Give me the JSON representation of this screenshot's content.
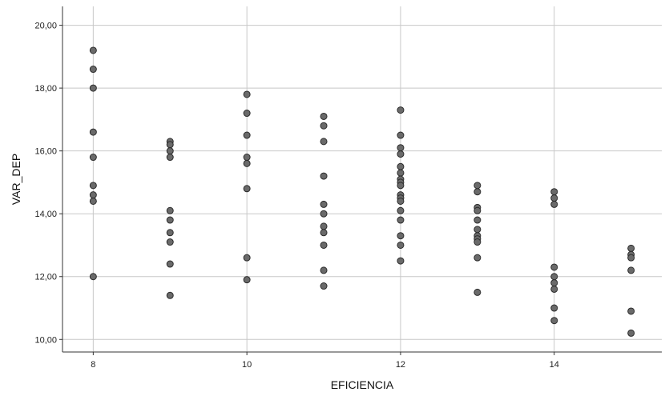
{
  "chart_data": {
    "type": "scatter",
    "title": "",
    "xlabel": "EFICIENCIA",
    "ylabel": "VAR_DEP",
    "xlim": [
      7.6,
      15.4
    ],
    "ylim": [
      9.6,
      20.6
    ],
    "x_ticks": [
      8,
      10,
      12,
      14
    ],
    "x_tick_labels": [
      "8",
      "10",
      "12",
      "14"
    ],
    "y_ticks": [
      10,
      12,
      14,
      16,
      18,
      20
    ],
    "y_tick_labels": [
      "10,00",
      "12,00",
      "14,00",
      "16,00",
      "18,00",
      "20,00"
    ],
    "grid": true,
    "colors": {
      "point_fill": "#6a6a6a",
      "point_stroke": "#2b2b2b",
      "grid": "#c8c8c8",
      "axis": "#333333"
    },
    "points": [
      {
        "x": 8,
        "y": 19.2
      },
      {
        "x": 8,
        "y": 18.6
      },
      {
        "x": 8,
        "y": 18.0
      },
      {
        "x": 8,
        "y": 16.6
      },
      {
        "x": 8,
        "y": 15.8
      },
      {
        "x": 8,
        "y": 14.9
      },
      {
        "x": 8,
        "y": 14.6
      },
      {
        "x": 8,
        "y": 14.4
      },
      {
        "x": 8,
        "y": 12.0
      },
      {
        "x": 9,
        "y": 16.3
      },
      {
        "x": 9,
        "y": 16.2
      },
      {
        "x": 9,
        "y": 16.0
      },
      {
        "x": 9,
        "y": 15.8
      },
      {
        "x": 9,
        "y": 14.1
      },
      {
        "x": 9,
        "y": 13.8
      },
      {
        "x": 9,
        "y": 13.4
      },
      {
        "x": 9,
        "y": 13.1
      },
      {
        "x": 9,
        "y": 12.4
      },
      {
        "x": 9,
        "y": 11.4
      },
      {
        "x": 10,
        "y": 17.8
      },
      {
        "x": 10,
        "y": 17.2
      },
      {
        "x": 10,
        "y": 16.5
      },
      {
        "x": 10,
        "y": 15.8
      },
      {
        "x": 10,
        "y": 15.6
      },
      {
        "x": 10,
        "y": 14.8
      },
      {
        "x": 10,
        "y": 12.6
      },
      {
        "x": 10,
        "y": 11.9
      },
      {
        "x": 11,
        "y": 17.1
      },
      {
        "x": 11,
        "y": 16.8
      },
      {
        "x": 11,
        "y": 16.3
      },
      {
        "x": 11,
        "y": 15.2
      },
      {
        "x": 11,
        "y": 14.3
      },
      {
        "x": 11,
        "y": 14.0
      },
      {
        "x": 11,
        "y": 13.6
      },
      {
        "x": 11,
        "y": 13.4
      },
      {
        "x": 11,
        "y": 13.0
      },
      {
        "x": 11,
        "y": 12.2
      },
      {
        "x": 11,
        "y": 11.7
      },
      {
        "x": 12,
        "y": 17.3
      },
      {
        "x": 12,
        "y": 16.5
      },
      {
        "x": 12,
        "y": 16.1
      },
      {
        "x": 12,
        "y": 15.9
      },
      {
        "x": 12,
        "y": 15.5
      },
      {
        "x": 12,
        "y": 15.3
      },
      {
        "x": 12,
        "y": 15.1
      },
      {
        "x": 12,
        "y": 15.0
      },
      {
        "x": 12,
        "y": 14.9
      },
      {
        "x": 12,
        "y": 14.6
      },
      {
        "x": 12,
        "y": 14.5
      },
      {
        "x": 12,
        "y": 14.4
      },
      {
        "x": 12,
        "y": 14.1
      },
      {
        "x": 12,
        "y": 13.8
      },
      {
        "x": 12,
        "y": 13.3
      },
      {
        "x": 12,
        "y": 13.0
      },
      {
        "x": 12,
        "y": 12.5
      },
      {
        "x": 13,
        "y": 14.9
      },
      {
        "x": 13,
        "y": 14.7
      },
      {
        "x": 13,
        "y": 14.2
      },
      {
        "x": 13,
        "y": 14.1
      },
      {
        "x": 13,
        "y": 13.8
      },
      {
        "x": 13,
        "y": 13.5
      },
      {
        "x": 13,
        "y": 13.3
      },
      {
        "x": 13,
        "y": 13.2
      },
      {
        "x": 13,
        "y": 13.1
      },
      {
        "x": 13,
        "y": 12.6
      },
      {
        "x": 13,
        "y": 11.5
      },
      {
        "x": 14,
        "y": 14.7
      },
      {
        "x": 14,
        "y": 14.5
      },
      {
        "x": 14,
        "y": 14.3
      },
      {
        "x": 14,
        "y": 12.3
      },
      {
        "x": 14,
        "y": 12.0
      },
      {
        "x": 14,
        "y": 11.8
      },
      {
        "x": 14,
        "y": 11.6
      },
      {
        "x": 14,
        "y": 11.0
      },
      {
        "x": 14,
        "y": 10.6
      },
      {
        "x": 15,
        "y": 12.9
      },
      {
        "x": 15,
        "y": 12.7
      },
      {
        "x": 15,
        "y": 12.6
      },
      {
        "x": 15,
        "y": 12.2
      },
      {
        "x": 15,
        "y": 10.9
      },
      {
        "x": 15,
        "y": 10.2
      }
    ]
  }
}
